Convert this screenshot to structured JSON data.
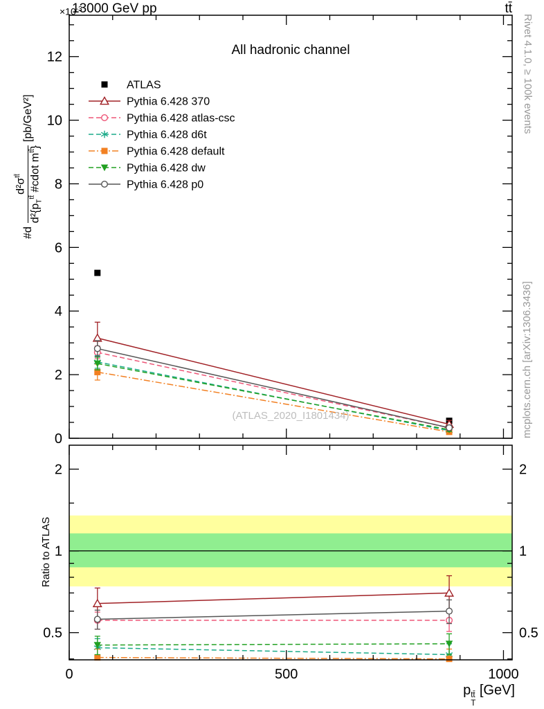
{
  "header": {
    "energy": "13000 GeV pp",
    "process": "tt̄",
    "multiplier_base": "×10",
    "multiplier_exp": "-3"
  },
  "titles": {
    "panel_title": "All hadronic channel",
    "watermark": "(ATLAS_2020_I1801434)"
  },
  "side_notes": {
    "rivet": "Rivet 4.1.0, ≥ 100k events",
    "mcplots": "mcplots.cern.ch [arXiv:1306.3436]"
  },
  "axis_labels": {
    "x": {
      "base": "p",
      "sub": "T",
      "sup": "tt̄",
      "units": " [GeV]"
    },
    "y_main": {
      "prefix": "#d",
      "num_base": "d²σ",
      "num_sup": "tt̄",
      "den_pre": "d²{p",
      "den_sub": "T",
      "den_sup": "tt̄",
      "den_mid": " #cdot m",
      "den_sup2": "tt̄",
      "den_post": "}",
      "units": "[pb/GeV²]"
    },
    "y_ratio": "Ratio to ATLAS"
  },
  "chart_data": [
    {
      "id": "main",
      "type": "line",
      "title": "All hadronic channel",
      "xlabel": "p_T^{tt̄} [GeV]",
      "ylabel": "#d d²σ^{tt̄} / d²{p_T^{tt̄} #cdot m^{tt̄}} [pb/GeV²]",
      "y_multiplier": "×10^-3",
      "xlim": [
        0,
        1020
      ],
      "ylim": [
        0,
        13.3
      ],
      "x_major_ticks": [
        0,
        500,
        1000
      ],
      "x_minor_step": 100,
      "y_major_ticks": [
        0,
        2,
        4,
        6,
        8,
        10,
        12
      ],
      "y_minor_step": 0.5,
      "legend_position": "upper-left",
      "grid": false,
      "series": [
        {
          "name": "ATLAS",
          "color": "#000000",
          "line": "none",
          "marker": "square-filled",
          "x": [
            65,
            875
          ],
          "y": [
            5.2,
            0.55
          ],
          "yerr": [
            0,
            0
          ]
        },
        {
          "name": "Pythia 6.428 370",
          "color": "#a02025",
          "line": "solid",
          "marker": "triangle-up-open",
          "x": [
            65,
            875
          ],
          "y": [
            3.15,
            0.44
          ],
          "yerr": [
            0.5,
            0.12
          ]
        },
        {
          "name": "Pythia 6.428 atlas-csc",
          "color": "#ee5577",
          "line": "dashed",
          "marker": "circle-open",
          "x": [
            65,
            875
          ],
          "y": [
            2.7,
            0.33
          ],
          "yerr": [
            0.2,
            0.07
          ]
        },
        {
          "name": "Pythia 6.428 d6t",
          "color": "#1aaa88",
          "line": "dashed",
          "marker": "asterisk",
          "x": [
            65,
            875
          ],
          "y": [
            2.4,
            0.24
          ],
          "yerr": [
            0.2,
            0.06
          ]
        },
        {
          "name": "Pythia 6.428 default",
          "color": "#f28022",
          "line": "dashdot",
          "marker": "square-filled",
          "x": [
            65,
            875
          ],
          "y": [
            2.08,
            0.2
          ],
          "yerr": [
            0.25,
            0.05
          ]
        },
        {
          "name": "Pythia 6.428 dw",
          "color": "#22a022",
          "line": "dashed",
          "marker": "triangle-down-filled",
          "x": [
            65,
            875
          ],
          "y": [
            2.35,
            0.27
          ],
          "yerr": [
            0.2,
            0.06
          ]
        },
        {
          "name": "Pythia 6.428 p0",
          "color": "#555555",
          "line": "solid",
          "marker": "circle-open",
          "x": [
            65,
            875
          ],
          "y": [
            2.82,
            0.33
          ],
          "yerr": [
            0.25,
            0.08
          ]
        }
      ]
    },
    {
      "id": "ratio",
      "type": "line",
      "ylabel": "Ratio to ATLAS",
      "xlim": [
        0,
        1020
      ],
      "ylim": [
        0.397,
        2.45
      ],
      "yscale": "log",
      "x_major_ticks": [
        0,
        500,
        1000
      ],
      "x_minor_step": 100,
      "y_major_ticks": [
        0.5,
        1,
        2
      ],
      "y_minor_ticks": [
        0.4,
        0.6,
        0.7,
        0.8,
        0.9,
        1.5
      ],
      "ref_line": 1,
      "bands": [
        {
          "name": "yellow-band",
          "color": "#ffff9e",
          "lo": 0.74,
          "hi": 1.35
        },
        {
          "name": "green-band",
          "color": "#90ee90",
          "lo": 0.87,
          "hi": 1.16
        }
      ],
      "series": [
        {
          "name": "Pythia 6.428 370",
          "color": "#a02025",
          "line": "solid",
          "marker": "triangle-up-open",
          "x": [
            65,
            875
          ],
          "y": [
            0.64,
            0.7
          ],
          "yerr": [
            0.09,
            0.11
          ]
        },
        {
          "name": "Pythia 6.428 atlas-csc",
          "color": "#ee5577",
          "line": "dashed",
          "marker": "circle-open",
          "x": [
            65,
            875
          ],
          "y": [
            0.555,
            0.555
          ],
          "yerr": [
            0.04,
            0.05
          ]
        },
        {
          "name": "Pythia 6.428 d6t",
          "color": "#1aaa88",
          "line": "dashed",
          "marker": "asterisk",
          "x": [
            65,
            875
          ],
          "y": [
            0.44,
            0.415
          ],
          "yerr": [
            0.035,
            0.04
          ]
        },
        {
          "name": "Pythia 6.428 default",
          "color": "#f28022",
          "line": "dashdot",
          "marker": "square-filled",
          "x": [
            65,
            875
          ],
          "y": [
            0.405,
            0.4
          ],
          "yerr": [
            0.03,
            0.035
          ]
        },
        {
          "name": "Pythia 6.428 dw",
          "color": "#22a022",
          "line": "dashed",
          "marker": "triangle-down-filled",
          "x": [
            65,
            875
          ],
          "y": [
            0.45,
            0.455
          ],
          "yerr": [
            0.035,
            0.04
          ]
        },
        {
          "name": "Pythia 6.428 p0",
          "color": "#555555",
          "line": "solid",
          "marker": "circle-open",
          "x": [
            65,
            875
          ],
          "y": [
            0.56,
            0.6
          ],
          "yerr": [
            0.045,
            0.06
          ]
        }
      ]
    }
  ]
}
